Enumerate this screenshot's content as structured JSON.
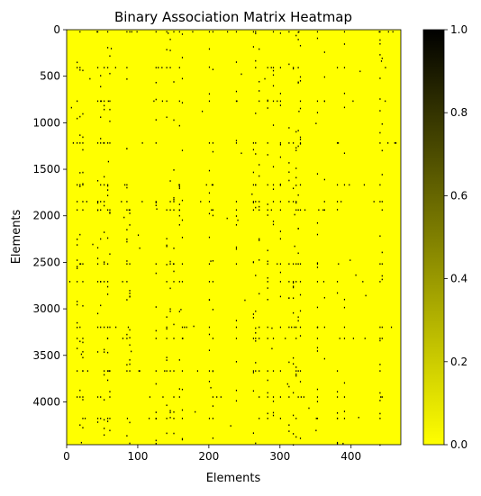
{
  "chart_data": {
    "type": "heatmap",
    "title": "Binary Association Matrix Heatmap",
    "xlabel": "Elements",
    "ylabel": "Elements",
    "x_range": [
      0,
      470
    ],
    "y_range": [
      0,
      4460
    ],
    "y_inverted": true,
    "xticks": [
      0,
      100,
      200,
      300,
      400
    ],
    "yticks": [
      0,
      500,
      1000,
      1500,
      2000,
      2500,
      3000,
      3500,
      4000
    ],
    "grid": false,
    "colorbar": {
      "min": 0.0,
      "max": 1.0,
      "ticks": [
        "0.0",
        "0.2",
        "0.4",
        "0.6",
        "0.8",
        "1.0"
      ],
      "low_color": "#ffff00",
      "high_color": "#000000"
    },
    "background_value": 0,
    "marks_value": 1,
    "marked_columns": [
      14,
      18,
      22,
      43,
      47,
      52,
      57,
      60,
      84,
      88,
      125,
      140,
      145,
      150,
      158,
      162,
      200,
      205,
      238,
      262,
      265,
      270,
      282,
      290,
      300,
      312,
      318,
      322,
      325,
      328,
      352,
      362,
      380,
      390,
      440,
      443
    ],
    "marked_rows": [
      15,
      400,
      760,
      1210,
      1660,
      1840,
      1930,
      2510,
      2700,
      3190,
      3310,
      3660,
      3940,
      4170
    ],
    "scatter_points": [
      [
        42,
        15
      ],
      [
        142,
        30
      ],
      [
        322,
        55
      ],
      [
        300,
        30
      ],
      [
        62,
        195
      ],
      [
        205,
        420
      ],
      [
        380,
        400
      ],
      [
        412,
        440
      ],
      [
        442,
        330
      ],
      [
        32,
        520
      ],
      [
        278,
        520
      ],
      [
        245,
        470
      ],
      [
        122,
        760
      ],
      [
        190,
        870
      ],
      [
        326,
        870
      ],
      [
        402,
        760
      ],
      [
        6,
        830
      ],
      [
        58,
        1410
      ],
      [
        390,
        1320
      ],
      [
        245,
        1320
      ],
      [
        126,
        1920
      ],
      [
        203,
        1930
      ],
      [
        360,
        1930
      ],
      [
        225,
        2020
      ],
      [
        320,
        1980
      ],
      [
        240,
        2040
      ],
      [
        80,
        2010
      ],
      [
        320,
        2320
      ],
      [
        102,
        2340
      ],
      [
        202,
        2480
      ],
      [
        238,
        2330
      ],
      [
        398,
        2470
      ],
      [
        406,
        2630
      ],
      [
        270,
        2830
      ],
      [
        300,
        2860
      ],
      [
        22,
        2960
      ],
      [
        178,
        3180
      ],
      [
        205,
        3000
      ],
      [
        288,
        3200
      ],
      [
        352,
        3410
      ],
      [
        456,
        3190
      ],
      [
        22,
        3660
      ],
      [
        102,
        3660
      ],
      [
        202,
        3840
      ],
      [
        288,
        3420
      ],
      [
        340,
        4060
      ],
      [
        205,
        4170
      ],
      [
        22,
        4270
      ],
      [
        140,
        4330
      ],
      [
        350,
        4300
      ],
      [
        380,
        4430
      ],
      [
        388,
        4440
      ],
      [
        20,
        4430
      ],
      [
        230,
        4250
      ],
      [
        410,
        4160
      ],
      [
        60,
        4300
      ],
      [
        160,
        3000
      ],
      [
        250,
        2900
      ],
      [
        420,
        2850
      ],
      [
        100,
        2200
      ],
      [
        150,
        1500
      ],
      [
        350,
        1000
      ],
      [
        270,
        650
      ],
      [
        440,
        1100
      ],
      [
        90,
        3450
      ],
      [
        310,
        3800
      ],
      [
        180,
        4100
      ],
      [
        36,
        2300
      ],
      [
        260,
        1760
      ],
      [
        300,
        2160
      ],
      [
        20,
        3480
      ],
      [
        440,
        3590
      ]
    ]
  }
}
